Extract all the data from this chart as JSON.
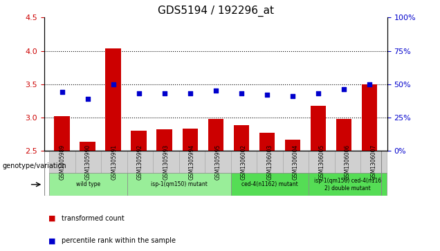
{
  "title": "GDS5194 / 192296_at",
  "samples": [
    "GSM1305989",
    "GSM1305990",
    "GSM1305991",
    "GSM1305992",
    "GSM1305993",
    "GSM1305994",
    "GSM1305995",
    "GSM1306002",
    "GSM1306003",
    "GSM1306004",
    "GSM1306005",
    "GSM1306006",
    "GSM1306007"
  ],
  "transformed_count": [
    3.02,
    2.63,
    4.04,
    2.8,
    2.82,
    2.83,
    2.98,
    2.88,
    2.77,
    2.66,
    3.17,
    2.98,
    3.5
  ],
  "percentile_rank": [
    44,
    39,
    50,
    43,
    43,
    43,
    45,
    43,
    42,
    41,
    43,
    46,
    50
  ],
  "ylim_left": [
    2.5,
    4.5
  ],
  "ylim_right": [
    0,
    100
  ],
  "yticks_left": [
    2.5,
    3.0,
    3.5,
    4.0,
    4.5
  ],
  "yticks_right": [
    0,
    25,
    50,
    75,
    100
  ],
  "bar_color": "#cc0000",
  "dot_color": "#0000cc",
  "bar_bottom": 2.5,
  "groups": [
    {
      "label": "wild type",
      "start": 0,
      "end": 3,
      "color": "#99ee99"
    },
    {
      "label": "isp-1(qm150) mutant",
      "start": 3,
      "end": 7,
      "color": "#99ee99"
    },
    {
      "label": "ced-4(n1162) mutant",
      "start": 7,
      "end": 10,
      "color": "#55dd55"
    },
    {
      "label": "isp-1(qm150) ced-4(n116\n2) double mutant",
      "start": 10,
      "end": 13,
      "color": "#55dd55"
    }
  ],
  "genotype_label": "genotype/variation",
  "legend_bar_label": "transformed count",
  "legend_dot_label": "percentile rank within the sample",
  "grid_yticks": [
    3.0,
    3.5,
    4.0
  ],
  "title_fontsize": 11,
  "sample_box_color": "#d0d0d0",
  "axis_label_color_left": "#cc0000",
  "axis_label_color_right": "#0000cc"
}
